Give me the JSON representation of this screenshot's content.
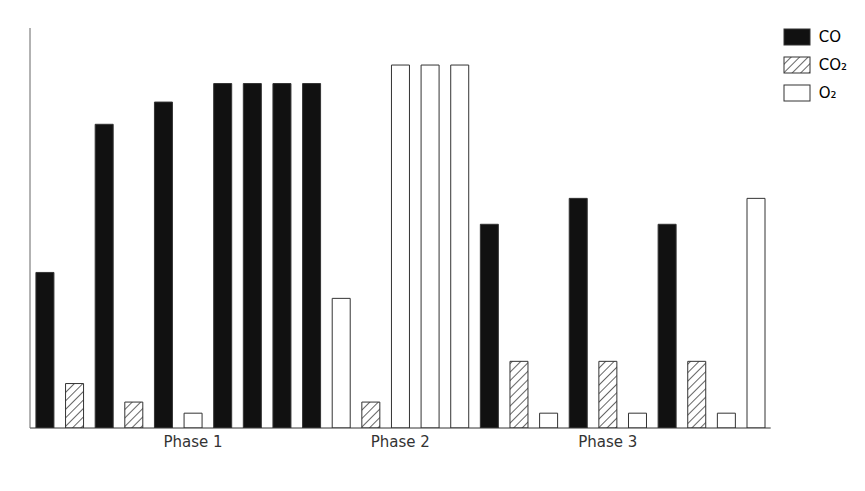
{
  "chart_data": {
    "type": "bar",
    "categories": [
      null,
      null,
      null,
      null,
      null,
      "Phase 1",
      null,
      null,
      null,
      null,
      null,
      null,
      "Phase 2",
      null,
      null,
      null,
      null,
      null,
      null,
      "Phase 3",
      null,
      null,
      null,
      null,
      null
    ],
    "series": [
      {
        "name": "CO",
        "color": "#111111",
        "values": [
          0.42,
          null,
          0.82,
          null,
          0.88,
          null,
          0.93,
          0.93,
          0.93,
          0.93,
          null,
          null,
          null,
          null,
          null,
          0.55,
          null,
          null,
          0.62,
          null,
          null,
          0.55,
          null,
          null,
          null
        ]
      },
      {
        "name": "CO₂",
        "color": "#ffffff",
        "values": [
          null,
          0.12,
          null,
          0.07,
          null,
          null,
          null,
          null,
          null,
          null,
          null,
          0.07,
          null,
          null,
          null,
          null,
          0.18,
          null,
          null,
          0.18,
          null,
          null,
          0.18,
          null,
          null
        ]
      },
      {
        "name": "O₂",
        "color": "#ffffff",
        "values": [
          null,
          null,
          null,
          null,
          null,
          0.04,
          null,
          null,
          null,
          null,
          0.35,
          null,
          0.98,
          0.98,
          0.98,
          null,
          null,
          0.04,
          null,
          null,
          0.04,
          null,
          null,
          0.04,
          0.62
        ]
      }
    ],
    "ylim": [
      0,
      1.08
    ],
    "tick_labels": "x",
    "legend": "upper right"
  }
}
